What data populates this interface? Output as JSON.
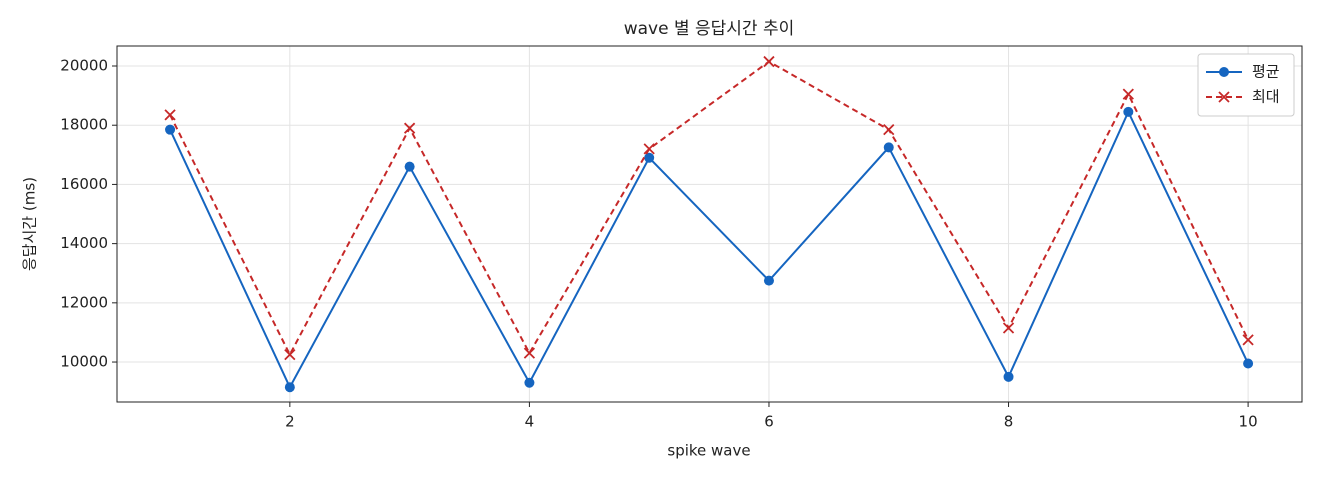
{
  "chart_data": {
    "type": "line",
    "title": "wave 별 응답시간 추이",
    "xlabel": "spike wave",
    "ylabel": "응답시간 (ms)",
    "x": [
      1,
      2,
      3,
      4,
      5,
      6,
      7,
      8,
      9,
      10
    ],
    "series": [
      {
        "name": "평균",
        "color": "#1565c0",
        "marker": "circle",
        "dash": false,
        "values": [
          17850,
          9150,
          16600,
          9300,
          16900,
          12750,
          17250,
          9500,
          18450,
          9950
        ]
      },
      {
        "name": "최대",
        "color": "#c62828",
        "marker": "x",
        "dash": true,
        "values": [
          18350,
          10250,
          17900,
          10300,
          17200,
          20150,
          17850,
          11150,
          19050,
          10750
        ]
      }
    ],
    "xlim": [
      0.557,
      10.45
    ],
    "xticks": [
      2,
      4,
      6,
      8,
      10
    ],
    "ylim": [
      8650,
      20676
    ],
    "yticks": [
      10000,
      12000,
      14000,
      16000,
      18000,
      20000
    ],
    "grid": true,
    "legend": "upper right"
  }
}
